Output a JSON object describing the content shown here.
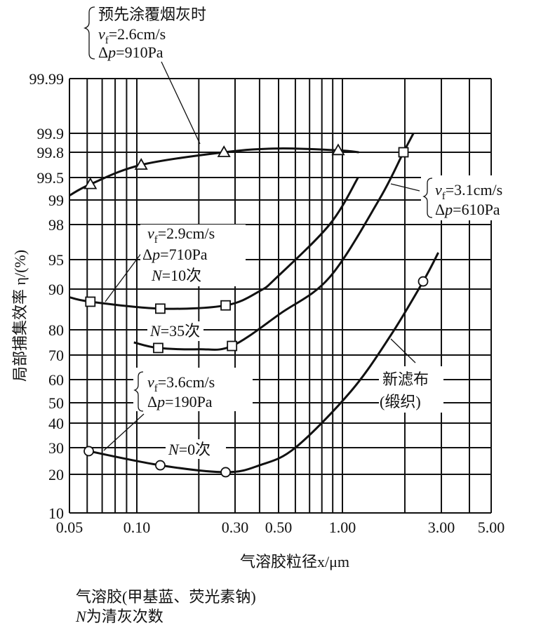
{
  "chart_data": {
    "type": "line",
    "title": "",
    "xlabel": "气溶胶粒径x/μm",
    "ylabel": "局部捕集效率 η/(%)",
    "x_scale": "log",
    "y_scale": "probability",
    "xlim": [
      0.05,
      5.0
    ],
    "ylim": [
      10,
      99.99
    ],
    "grid": true,
    "x_ticks": [
      "0.05",
      "0.10",
      "0.30",
      "0.50",
      "1.00",
      "3.00",
      "5.00"
    ],
    "x_tick_values": [
      0.05,
      0.1,
      0.3,
      0.5,
      1.0,
      3.0,
      5.0
    ],
    "y_ticks": [
      "99.99",
      "99.9",
      "99.8",
      "99.5",
      "99",
      "98",
      "95",
      "90",
      "80",
      "70",
      "60",
      "50",
      "40",
      "30",
      "20",
      "10"
    ],
    "y_tick_values": [
      99.99,
      99.9,
      99.8,
      99.5,
      99,
      98,
      95,
      90,
      80,
      70,
      60,
      50,
      40,
      30,
      20,
      10
    ],
    "x_grid_values": [
      0.05,
      0.06,
      0.07,
      0.08,
      0.09,
      0.1,
      0.2,
      0.3,
      0.4,
      0.5,
      0.6,
      0.7,
      0.8,
      0.9,
      1.0,
      2.0,
      3.0,
      4.0,
      5.0
    ],
    "series": [
      {
        "name": "coated",
        "marker": "triangle",
        "curve": [
          [
            0.05,
            99.1
          ],
          [
            0.062,
            99.35
          ],
          [
            0.105,
            99.65
          ],
          [
            0.265,
            99.8
          ],
          [
            0.5,
            99.82
          ],
          [
            0.955,
            99.81
          ],
          [
            1.2,
            99.8
          ]
        ],
        "points": [
          [
            0.062,
            99.35
          ],
          [
            0.105,
            99.65
          ],
          [
            0.265,
            99.8
          ],
          [
            0.955,
            99.81
          ]
        ]
      },
      {
        "name": "N=10",
        "marker": "square",
        "curve": [
          [
            0.05,
            88
          ],
          [
            0.062,
            86.9
          ],
          [
            0.13,
            85.2
          ],
          [
            0.27,
            86
          ],
          [
            0.4,
            89.5
          ],
          [
            0.49,
            92
          ],
          [
            0.87,
            98
          ],
          [
            1.19,
            99.5
          ]
        ],
        "points": [
          [
            0.062,
            86.9
          ],
          [
            0.13,
            85.2
          ],
          [
            0.27,
            86
          ]
        ]
      },
      {
        "name": "N=35",
        "marker": "square",
        "curve": [
          [
            0.097,
            75
          ],
          [
            0.127,
            72.8
          ],
          [
            0.2,
            72.3
          ],
          [
            0.29,
            73.6
          ],
          [
            0.51,
            84
          ],
          [
            0.87,
            92
          ],
          [
            1.5,
            99
          ],
          [
            1.97,
            99.8
          ],
          [
            2.2,
            99.9
          ]
        ],
        "points": [
          [
            0.127,
            72.8
          ],
          [
            0.29,
            73.6
          ],
          [
            1.97,
            99.8
          ]
        ]
      },
      {
        "name": "N=0",
        "marker": "circle",
        "curve": [
          [
            0.061,
            28.7
          ],
          [
            0.13,
            23.4
          ],
          [
            0.27,
            20.8
          ],
          [
            0.4,
            23.4
          ],
          [
            0.6,
            30
          ],
          [
            1.1,
            55
          ],
          [
            1.7,
            77.5
          ],
          [
            2.45,
            91.3
          ],
          [
            2.9,
            95.6
          ]
        ],
        "points": [
          [
            0.061,
            28.7
          ],
          [
            0.13,
            23.4
          ],
          [
            0.27,
            20.8
          ],
          [
            2.45,
            91.3
          ]
        ]
      }
    ]
  },
  "annotations": {
    "coated": {
      "title": "预先涂覆烟灰时",
      "v": "v",
      "v_sub": "f",
      "v_val": "=2.6cm/s",
      "dp": "Δ",
      "p": "p",
      "dp_val": "=910Pa"
    },
    "right": {
      "v": "v",
      "v_sub": "f",
      "v_val": "=3.1cm/s",
      "dp": "Δ",
      "p": "p",
      "dp_val": "=610Pa"
    },
    "n10": {
      "v": "v",
      "v_sub": "f",
      "v_val": "=2.9cm/s",
      "dp": "Δ",
      "p": "p",
      "dp_val": "=710Pa",
      "n": "N",
      "n_val": "=10次"
    },
    "n35": {
      "n": "N",
      "n_val": "=35次"
    },
    "n0group": {
      "v": "v",
      "v_sub": "f",
      "v_val": "=3.6cm/s",
      "dp": "Δ",
      "p": "p",
      "dp_val": "=190Pa"
    },
    "n0": {
      "n": "N",
      "n_val": "=0次"
    },
    "newcloth": {
      "line1": "新滤布",
      "line2": "(缎织)"
    }
  },
  "caption": {
    "line1": "气溶胶(甲基蓝、荧光素钠)",
    "line2_n": "N",
    "line2_rest": "为清灰次数"
  }
}
